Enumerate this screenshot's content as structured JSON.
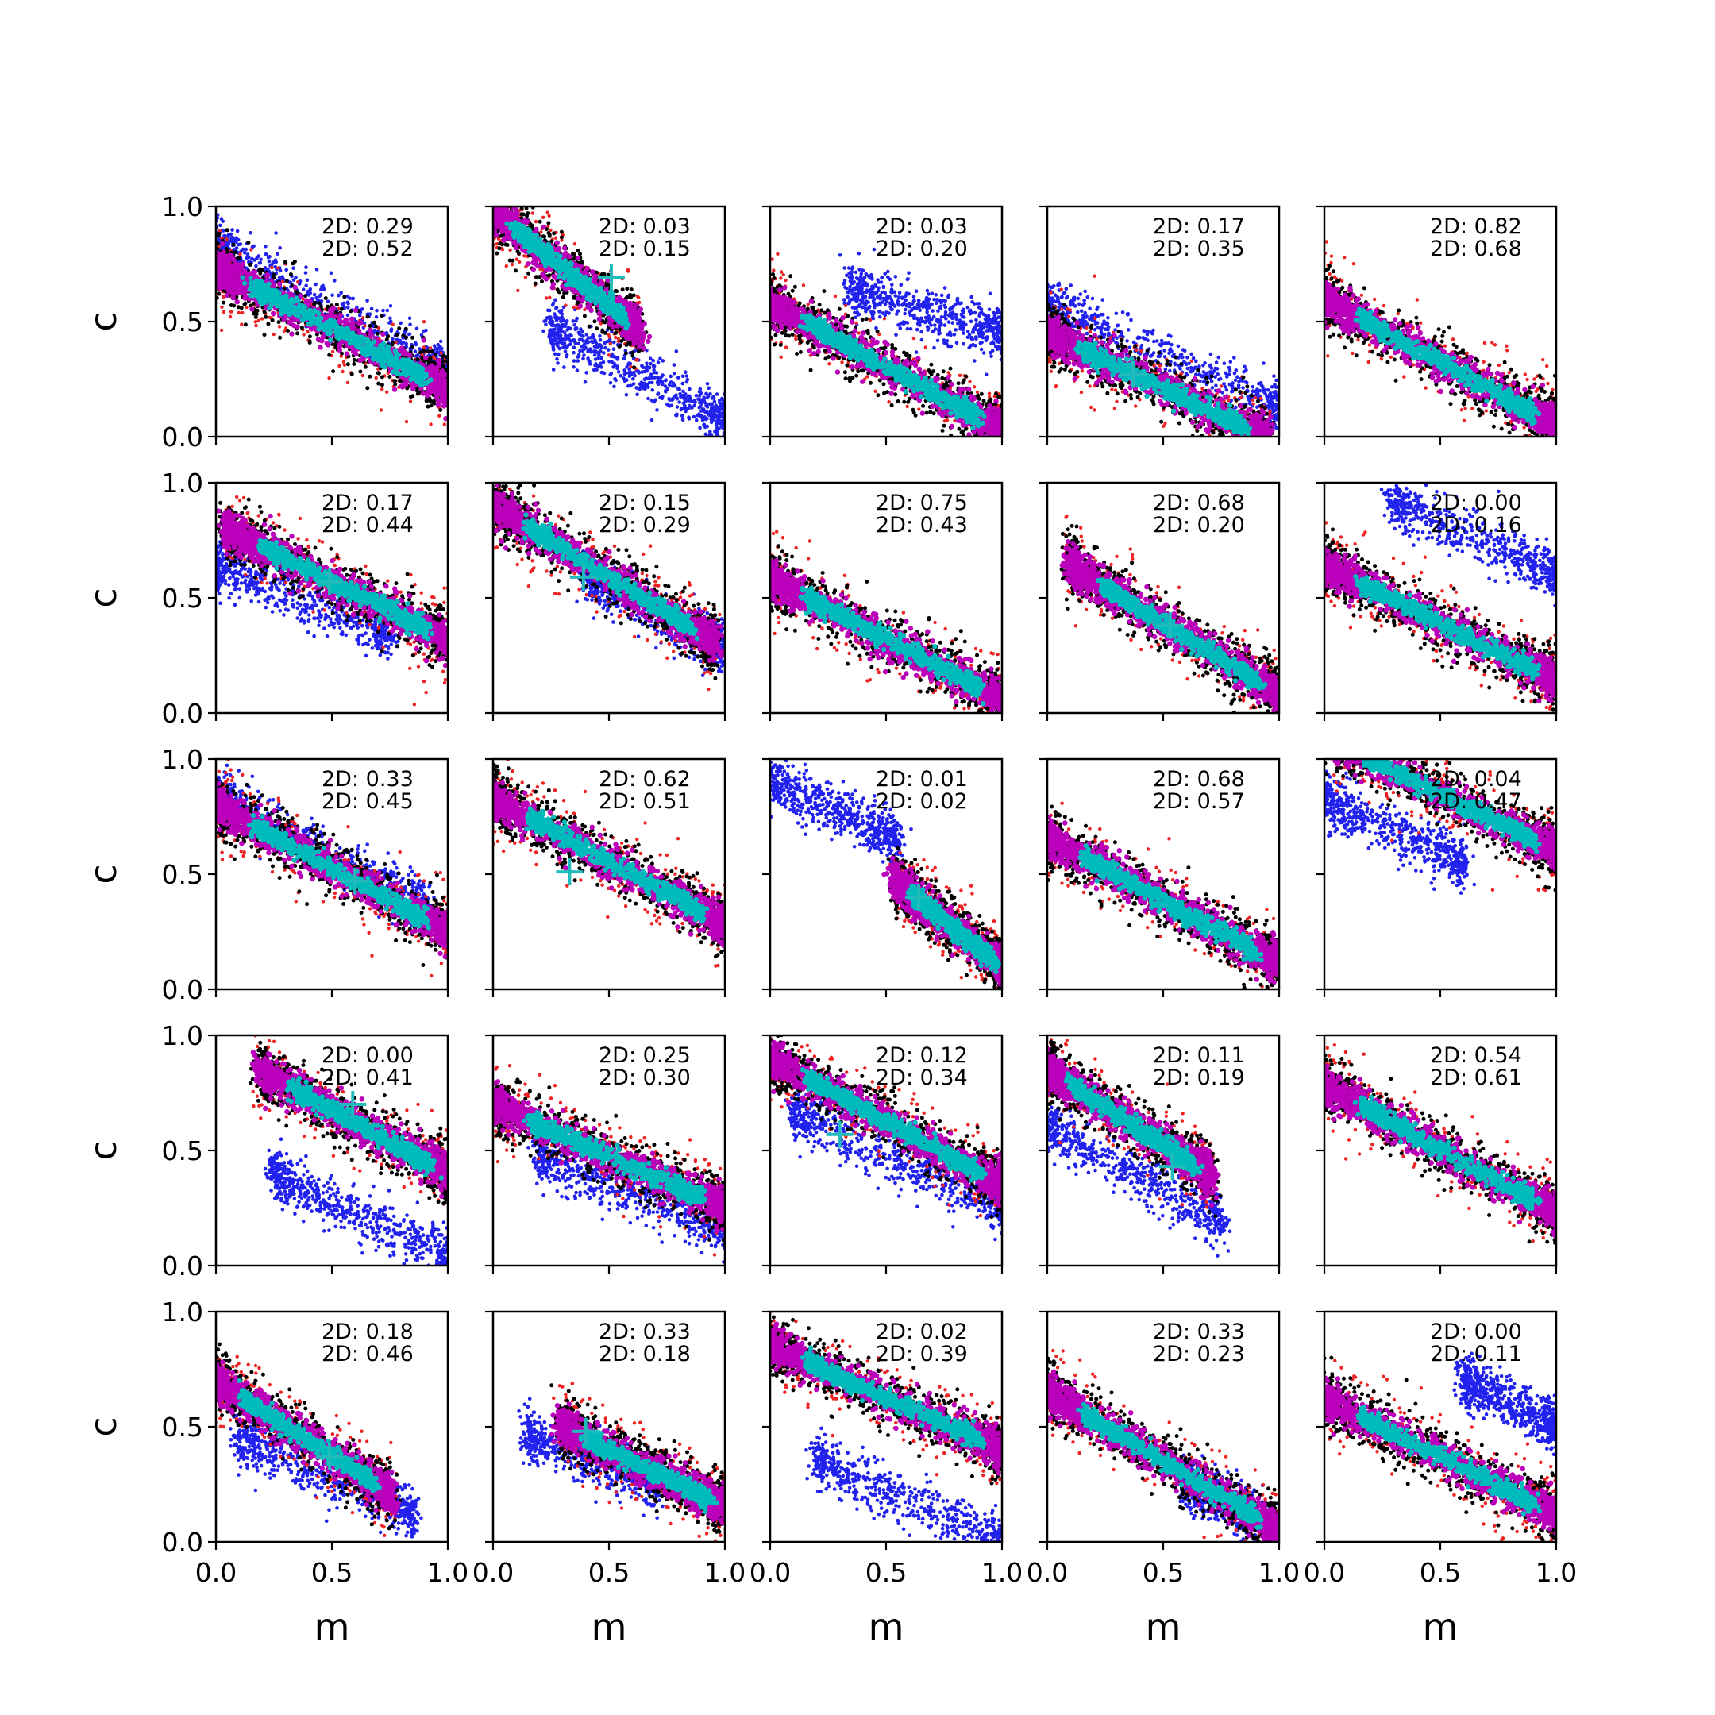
{
  "chart_data": {
    "type": "scatter",
    "layout": {
      "rows": 5,
      "cols": 5
    },
    "xlabel": "m",
    "ylabel": "c",
    "xlim": [
      0,
      1
    ],
    "ylim": [
      0,
      1
    ],
    "xticks": [
      "0.0",
      "0.5",
      "1.0"
    ],
    "yticks": [
      "0.0",
      "0.5",
      "1.0"
    ],
    "series_colors": {
      "blue": "#2222ee",
      "red": "#ee2222",
      "black": "#000000",
      "magenta": "#bb00bb",
      "cyan": "#00bbbb",
      "marker": "#22bbbb"
    },
    "panels": [
      {
        "annot": [
          "2D: 0.29",
          "2D: 0.52"
        ],
        "main": {
          "slope": -0.52,
          "intercept": 0.73,
          "xmin": 0.0,
          "xmax": 1.0
        },
        "blue": {
          "slope": -0.55,
          "intercept": 0.84,
          "xmin": 0.0,
          "xmax": 1.0
        },
        "marker": null
      },
      {
        "annot": [
          "2D: 0.03",
          "2D: 0.15"
        ],
        "main": {
          "slope": -0.82,
          "intercept": 0.98,
          "xmin": 0.0,
          "xmax": 0.62
        },
        "blue": {
          "slope": -0.55,
          "intercept": 0.62,
          "xmin": 0.25,
          "xmax": 1.0
        },
        "marker": {
          "m": 0.51,
          "c": 0.69
        }
      },
      {
        "annot": [
          "2D: 0.03",
          "2D: 0.20"
        ],
        "main": {
          "slope": -0.55,
          "intercept": 0.58,
          "xmin": 0.0,
          "xmax": 1.0
        },
        "blue": {
          "slope": -0.3,
          "intercept": 0.75,
          "xmin": 0.35,
          "xmax": 1.0
        },
        "marker": null
      },
      {
        "annot": [
          "2D: 0.17",
          "2D: 0.35"
        ],
        "main": {
          "slope": -0.48,
          "intercept": 0.45,
          "xmin": 0.0,
          "xmax": 0.95
        },
        "blue": {
          "slope": -0.45,
          "intercept": 0.58,
          "xmin": 0.0,
          "xmax": 1.0
        },
        "marker": {
          "m": 0.37,
          "c": 0.27
        }
      },
      {
        "annot": [
          "2D: 0.82",
          "2D: 0.68"
        ],
        "main": {
          "slope": -0.55,
          "intercept": 0.6,
          "xmin": 0.0,
          "xmax": 1.0
        },
        "blue": null,
        "marker": null
      },
      {
        "annot": [
          "2D: 0.17",
          "2D: 0.44"
        ],
        "main": {
          "slope": -0.5,
          "intercept": 0.82,
          "xmin": 0.05,
          "xmax": 1.0
        },
        "blue": {
          "slope": -0.4,
          "intercept": 0.64,
          "xmin": 0.0,
          "xmax": 0.75
        },
        "marker": {
          "m": 0.49,
          "c": 0.57
        }
      },
      {
        "annot": [
          "2D: 0.15",
          "2D: 0.29"
        ],
        "main": {
          "slope": -0.62,
          "intercept": 0.9,
          "xmin": 0.0,
          "xmax": 0.95
        },
        "blue": {
          "slope": -0.55,
          "intercept": 0.82,
          "xmin": 0.4,
          "xmax": 1.0
        },
        "marker": {
          "m": 0.39,
          "c": 0.59
        }
      },
      {
        "annot": [
          "2D: 0.75",
          "2D: 0.43"
        ],
        "main": {
          "slope": -0.52,
          "intercept": 0.58,
          "xmin": 0.0,
          "xmax": 1.0
        },
        "blue": null,
        "marker": null
      },
      {
        "annot": [
          "2D: 0.68",
          "2D: 0.20"
        ],
        "main": {
          "slope": -0.62,
          "intercept": 0.7,
          "xmin": 0.1,
          "xmax": 1.0
        },
        "blue": null,
        "marker": {
          "m": 0.53,
          "c": 0.38
        }
      },
      {
        "annot": [
          "2D: 0.00",
          "2D: 0.16"
        ],
        "main": {
          "slope": -0.5,
          "intercept": 0.64,
          "xmin": 0.0,
          "xmax": 1.0
        },
        "blue": {
          "slope": -0.45,
          "intercept": 1.05,
          "xmin": 0.3,
          "xmax": 1.0
        },
        "marker": null
      },
      {
        "annot": [
          "2D: 0.33",
          "2D: 0.45"
        ],
        "main": {
          "slope": -0.55,
          "intercept": 0.8,
          "xmin": 0.0,
          "xmax": 1.0
        },
        "blue": {
          "slope": -0.55,
          "intercept": 0.85,
          "xmin": 0.0,
          "xmax": 0.9
        },
        "marker": {
          "m": 0.6,
          "c": 0.47
        }
      },
      {
        "annot": [
          "2D: 0.62",
          "2D: 0.51"
        ],
        "main": {
          "slope": -0.55,
          "intercept": 0.83,
          "xmin": 0.0,
          "xmax": 1.0
        },
        "blue": null,
        "marker": {
          "m": 0.33,
          "c": 0.51
        }
      },
      {
        "annot": [
          "2D: 0.01",
          "2D: 0.02"
        ],
        "main": {
          "slope": -0.8,
          "intercept": 0.9,
          "xmin": 0.55,
          "xmax": 1.0
        },
        "blue": {
          "slope": -0.45,
          "intercept": 0.9,
          "xmin": 0.0,
          "xmax": 0.55
        },
        "marker": {
          "m": 0.64,
          "c": 0.4
        }
      },
      {
        "annot": [
          "2D: 0.68",
          "2D: 0.57"
        ],
        "main": {
          "slope": -0.55,
          "intercept": 0.66,
          "xmin": 0.0,
          "xmax": 1.0
        },
        "blue": null,
        "marker": null
      },
      {
        "annot": [
          "2D: 0.04",
          "2D: 0.47"
        ],
        "main": {
          "slope": -0.5,
          "intercept": 1.1,
          "xmin": 0.0,
          "xmax": 1.0
        },
        "blue": {
          "slope": -0.45,
          "intercept": 0.82,
          "xmin": 0.0,
          "xmax": 0.6
        },
        "marker": null
      },
      {
        "annot": [
          "2D: 0.00",
          "2D: 0.41"
        ],
        "main": {
          "slope": -0.55,
          "intercept": 0.95,
          "xmin": 0.2,
          "xmax": 1.0
        },
        "blue": {
          "slope": -0.45,
          "intercept": 0.5,
          "xmin": 0.25,
          "xmax": 1.0
        },
        "marker": {
          "m": 0.59,
          "c": 0.7
        }
      },
      {
        "annot": [
          "2D: 0.25",
          "2D: 0.30"
        ],
        "main": {
          "slope": -0.45,
          "intercept": 0.7,
          "xmin": 0.0,
          "xmax": 1.0
        },
        "blue": {
          "slope": -0.4,
          "intercept": 0.55,
          "xmin": 0.2,
          "xmax": 1.0
        },
        "marker": null
      },
      {
        "annot": [
          "2D: 0.12",
          "2D: 0.34"
        ],
        "main": {
          "slope": -0.55,
          "intercept": 0.9,
          "xmin": 0.0,
          "xmax": 1.0
        },
        "blue": {
          "slope": -0.45,
          "intercept": 0.7,
          "xmin": 0.1,
          "xmax": 1.0
        },
        "marker": {
          "m": 0.3,
          "c": 0.57
        }
      },
      {
        "annot": [
          "2D: 0.11",
          "2D: 0.19"
        ],
        "main": {
          "slope": -0.65,
          "intercept": 0.85,
          "xmin": 0.0,
          "xmax": 0.7
        },
        "blue": {
          "slope": -0.55,
          "intercept": 0.6,
          "xmin": 0.0,
          "xmax": 0.75
        },
        "marker": {
          "m": 0.54,
          "c": 0.43
        }
      },
      {
        "annot": [
          "2D: 0.54",
          "2D: 0.61"
        ],
        "main": {
          "slope": -0.55,
          "intercept": 0.78,
          "xmin": 0.0,
          "xmax": 1.0
        },
        "blue": null,
        "marker": null
      },
      {
        "annot": [
          "2D: 0.18",
          "2D: 0.46"
        ],
        "main": {
          "slope": -0.65,
          "intercept": 0.7,
          "xmin": 0.0,
          "xmax": 0.75
        },
        "blue": {
          "slope": -0.45,
          "intercept": 0.5,
          "xmin": 0.1,
          "xmax": 0.85
        },
        "marker": {
          "m": 0.49,
          "c": 0.37
        }
      },
      {
        "annot": [
          "2D: 0.33",
          "2D: 0.18"
        ],
        "main": {
          "slope": -0.5,
          "intercept": 0.65,
          "xmin": 0.3,
          "xmax": 1.0
        },
        "blue": {
          "slope": -0.35,
          "intercept": 0.5,
          "xmin": 0.15,
          "xmax": 0.7
        },
        "marker": {
          "m": 0.4,
          "c": 0.48
        }
      },
      {
        "annot": [
          "2D: 0.02",
          "2D: 0.39"
        ],
        "main": {
          "slope": -0.45,
          "intercept": 0.85,
          "xmin": 0.0,
          "xmax": 1.0
        },
        "blue": {
          "slope": -0.45,
          "intercept": 0.45,
          "xmin": 0.2,
          "xmax": 1.0
        },
        "marker": null
      },
      {
        "annot": [
          "2D: 0.33",
          "2D: 0.23"
        ],
        "main": {
          "slope": -0.6,
          "intercept": 0.65,
          "xmin": 0.0,
          "xmax": 1.0
        },
        "blue": {
          "slope": -0.5,
          "intercept": 0.55,
          "xmin": 0.6,
          "xmax": 1.0
        },
        "marker": null
      },
      {
        "annot": [
          "2D: 0.00",
          "2D: 0.11"
        ],
        "main": {
          "slope": -0.5,
          "intercept": 0.62,
          "xmin": 0.0,
          "xmax": 1.0
        },
        "blue": {
          "slope": -0.5,
          "intercept": 1.0,
          "xmin": 0.6,
          "xmax": 1.0
        },
        "marker": null
      }
    ]
  }
}
